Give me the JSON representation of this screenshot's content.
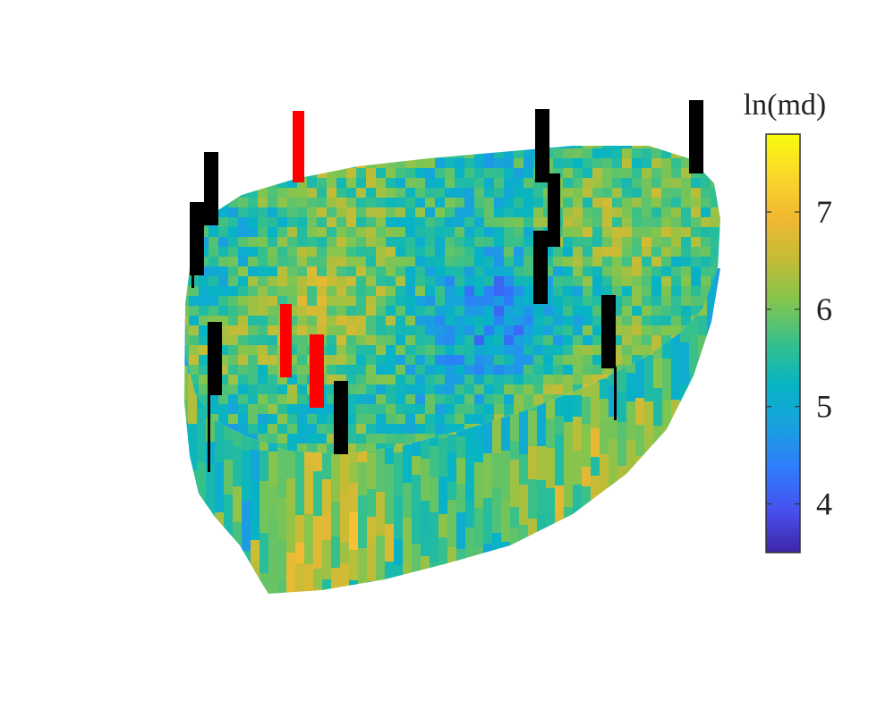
{
  "chart_data": {
    "type": "heatmap",
    "title": "",
    "xlabel": "",
    "ylabel": "",
    "colorbar": {
      "title": "ln(md)",
      "range": [
        3.5,
        7.8
      ],
      "ticks": [
        4,
        5,
        6,
        7
      ],
      "colormap": "parula",
      "colormap_stops": [
        "#3e26a8",
        "#4750ef",
        "#2f7cfb",
        "#1aa0e0",
        "#06b4c3",
        "#36c08c",
        "#82c54f",
        "#c4bc35",
        "#f2b833",
        "#f9d82a",
        "#f9fb0e"
      ]
    },
    "grid": false,
    "legend": "none",
    "wells": [
      {
        "color": "#ff0000",
        "count": 3
      },
      {
        "color": "#000000",
        "count": 8
      }
    ]
  }
}
